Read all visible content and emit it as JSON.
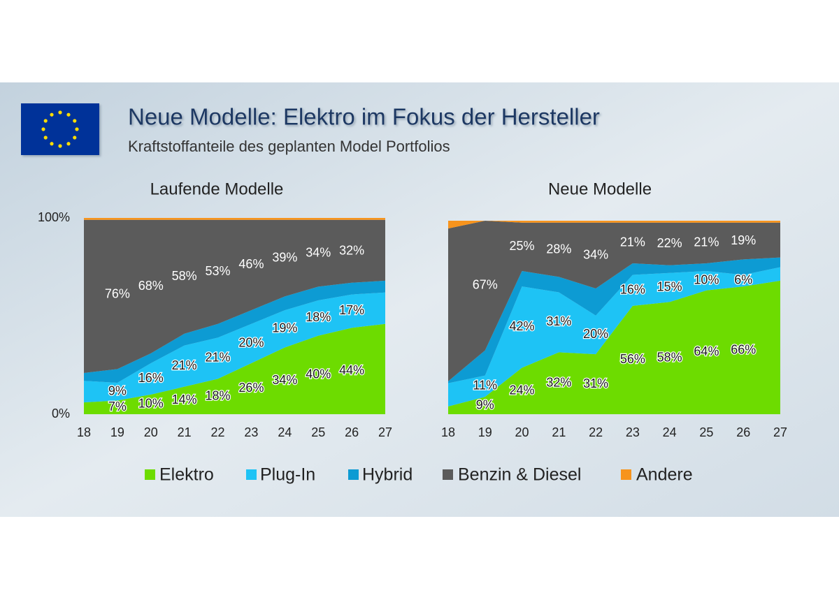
{
  "title": "Neue Modelle: Elektro im Fokus der Hersteller",
  "subtitle": "Kraftstoffanteile des geplanten Model Portfolios",
  "chart_data": [
    {
      "type": "stacked_area",
      "title": "Laufende Modelle",
      "categories": [
        "18",
        "19",
        "20",
        "21",
        "22",
        "23",
        "24",
        "25",
        "26",
        "27"
      ],
      "ylim": [
        0,
        100
      ],
      "yticks": [
        {
          "value": 0,
          "label": "0%"
        },
        {
          "value": 100,
          "label": "100%"
        }
      ],
      "series": [
        {
          "name": "Elektro",
          "color": "#6ddc00",
          "values": [
            6,
            7,
            10,
            14,
            18,
            26,
            34,
            40,
            44,
            46
          ],
          "value_labels": [
            null,
            "7%",
            "10%",
            "14%",
            "18%",
            "26%",
            "34%",
            "40%",
            "44%",
            null
          ]
        },
        {
          "name": "Plug-In",
          "color": "#1ec3f5",
          "values": [
            11,
            9,
            16,
            21,
            21,
            20,
            19,
            18,
            17,
            16
          ],
          "value_labels": [
            null,
            "9%",
            "16%",
            "21%",
            "21%",
            "20%",
            "19%",
            "18%",
            "17%",
            null
          ]
        },
        {
          "name": "Hybrid",
          "color": "#0d9bd3",
          "values": [
            4,
            7,
            5,
            6,
            7,
            7,
            7,
            7,
            6,
            6
          ]
        },
        {
          "name": "Benzin & Diesel",
          "color": "#5b5b5b",
          "values": [
            78,
            76,
            68,
            58,
            53,
            46,
            39,
            34,
            32,
            31
          ],
          "value_labels": [
            null,
            "76%",
            "68%",
            "58%",
            "53%",
            "46%",
            "39%",
            "34%",
            "32%",
            null
          ]
        },
        {
          "name": "Andere",
          "color": "#f7941d",
          "values": [
            1,
            1,
            1,
            1,
            1,
            1,
            1,
            1,
            1,
            1
          ]
        }
      ]
    },
    {
      "type": "stacked_area",
      "title": "Neue Modelle",
      "categories": [
        "18",
        "19",
        "20",
        "21",
        "22",
        "23",
        "24",
        "25",
        "26",
        "27"
      ],
      "ylim": [
        0,
        100
      ],
      "series": [
        {
          "name": "Elektro",
          "color": "#6ddc00",
          "values": [
            4,
            9,
            24,
            32,
            31,
            56,
            58,
            64,
            66,
            69
          ],
          "value_labels": [
            null,
            "9%",
            "24%",
            "32%",
            "31%",
            "56%",
            "58%",
            "64%",
            "66%",
            null
          ]
        },
        {
          "name": "Plug-In",
          "color": "#1ec3f5",
          "values": [
            12,
            11,
            42,
            31,
            20,
            16,
            15,
            10,
            6,
            7
          ],
          "value_labels": [
            null,
            "11%",
            "42%",
            "31%",
            "20%",
            "16%",
            "15%",
            "10%",
            "6%",
            null
          ]
        },
        {
          "name": "Hybrid",
          "color": "#0d9bd3",
          "values": [
            1,
            13,
            8,
            8,
            14,
            6,
            4,
            4,
            8,
            5
          ]
        },
        {
          "name": "Benzin & Diesel",
          "color": "#5b5b5b",
          "values": [
            79,
            67,
            25,
            28,
            34,
            21,
            22,
            21,
            19,
            18
          ],
          "value_labels": [
            null,
            "67%",
            "25%",
            "28%",
            "34%",
            "21%",
            "22%",
            "21%",
            "19%",
            null
          ]
        },
        {
          "name": "Andere",
          "color": "#f7941d",
          "values": [
            4,
            0,
            1,
            1,
            1,
            1,
            1,
            1,
            1,
            1
          ]
        }
      ]
    }
  ]
}
